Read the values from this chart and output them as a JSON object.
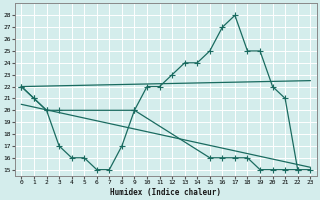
{
  "xlabel": "Humidex (Indice chaleur)",
  "bg_color": "#d4edec",
  "grid_color": "#ffffff",
  "line_color": "#1a6b60",
  "xlim": [
    -0.5,
    23.5
  ],
  "ylim": [
    14.5,
    29.0
  ],
  "xticks": [
    0,
    1,
    2,
    3,
    4,
    5,
    6,
    7,
    8,
    9,
    10,
    11,
    12,
    13,
    14,
    15,
    16,
    17,
    18,
    19,
    20,
    21,
    22,
    23
  ],
  "yticks": [
    15,
    16,
    17,
    18,
    19,
    20,
    21,
    22,
    23,
    24,
    25,
    26,
    27,
    28
  ],
  "top_curve_x": [
    0,
    1,
    2,
    3,
    9,
    10,
    11,
    12,
    13,
    14,
    15,
    16,
    17,
    18,
    19,
    20,
    21,
    22
  ],
  "top_curve_y": [
    22,
    21,
    20,
    20,
    20,
    22,
    22,
    23,
    24,
    24,
    25,
    27,
    28,
    25,
    25,
    22,
    21,
    15
  ],
  "bot_curve_x": [
    0,
    1,
    2,
    3,
    4,
    5,
    6,
    7,
    8,
    9,
    15,
    16,
    17,
    18,
    19,
    20,
    21,
    22,
    23
  ],
  "bot_curve_y": [
    22,
    21,
    20,
    17,
    16,
    16,
    15,
    15,
    17,
    20,
    16,
    16,
    16,
    16,
    15,
    15,
    15,
    15,
    15
  ],
  "line1_x": [
    0,
    23
  ],
  "line1_y": [
    22,
    22.5
  ],
  "line2_x": [
    0,
    23
  ],
  "line2_y": [
    20.5,
    15.2
  ]
}
